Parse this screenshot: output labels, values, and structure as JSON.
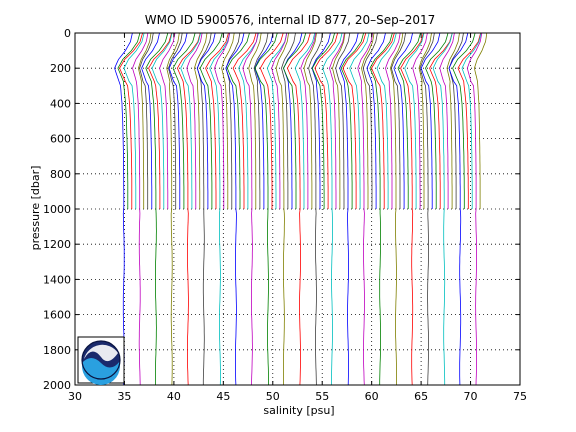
{
  "chart_data": {
    "type": "line",
    "title": "WMO ID 5900576, internal ID 877, 20–Sep–2017",
    "xlabel": "salinity [psu]",
    "ylabel": "pressure [dbar]",
    "xlim": [
      30,
      75
    ],
    "ylim": [
      2000,
      0
    ],
    "y_reversed": true,
    "grid": "dotted",
    "xticks": [
      "30",
      "35",
      "40",
      "45",
      "50",
      "55",
      "60",
      "65",
      "70",
      "75"
    ],
    "yticks": [
      "0",
      "200",
      "400",
      "600",
      "800",
      "1000",
      "1200",
      "1400",
      "1600",
      "1800",
      "2000"
    ],
    "profiles": {
      "description": "offset salinity profiles (each successive cycle shifted right)",
      "count": 90,
      "start_salinity": 34.9,
      "offset_step_psu": 0.405,
      "colors": [
        "#0000ff",
        "#008000",
        "#ff0000",
        "#00bfbf",
        "#bf00bf",
        "#7f7f00",
        "#404040"
      ],
      "shallow_profile_max_pressure": 1000,
      "deep_profile_max_pressure": 2000,
      "shape_pressure": [
        0,
        50,
        100,
        150,
        200,
        250,
        300,
        400,
        500,
        600,
        700,
        800,
        900,
        1000
      ],
      "shape_salinity_delta": [
        0.9,
        0.7,
        0.2,
        -0.5,
        -0.9,
        -0.6,
        -0.3,
        -0.15,
        -0.08,
        -0.04,
        0.0,
        0.02,
        0.03,
        0.03
      ]
    },
    "logo": "noaa-logo"
  },
  "colors": {
    "axis": "#000000",
    "background": "#ffffff"
  }
}
